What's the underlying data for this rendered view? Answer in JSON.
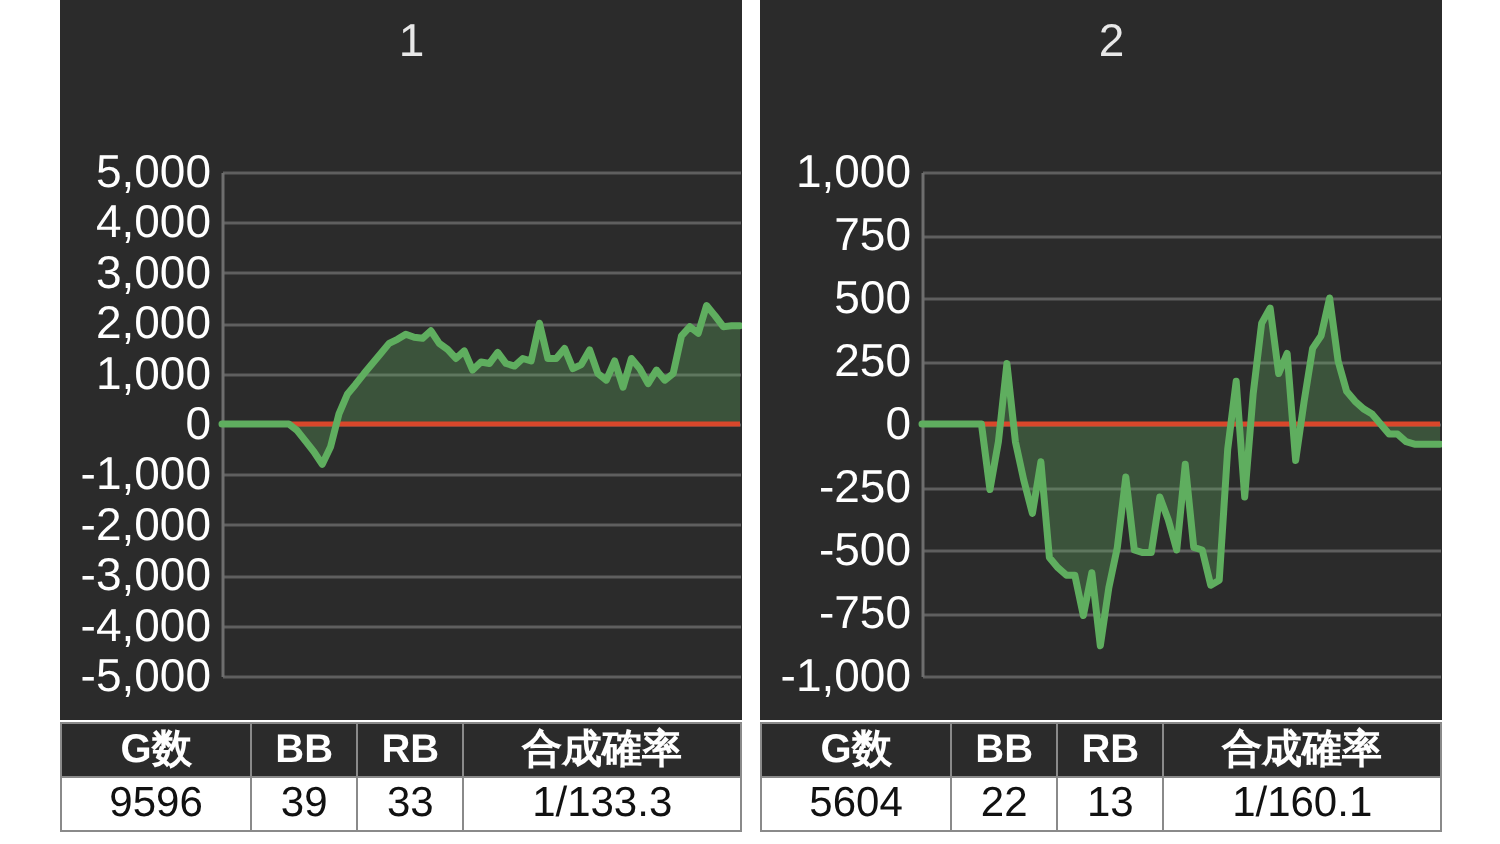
{
  "chart_data": [
    {
      "type": "area",
      "title": "1",
      "categories": [
        null,
        null,
        null,
        null,
        null,
        null,
        null,
        null,
        null,
        null,
        null,
        null,
        null,
        null,
        null,
        null,
        null,
        null,
        null,
        null,
        null,
        null,
        null,
        null,
        null,
        null,
        null,
        null,
        null,
        null,
        null,
        null,
        null,
        null,
        null,
        null,
        null,
        null,
        null,
        null,
        null,
        null,
        null,
        null,
        null,
        null,
        null,
        null,
        null,
        null,
        null,
        null,
        null,
        null,
        null,
        null,
        null,
        null,
        null,
        null,
        null,
        null,
        null
      ],
      "series": [
        {
          "color": "#5fae5f",
          "values": [
            0,
            0,
            0,
            0,
            0,
            0,
            0,
            0,
            0,
            -130,
            -340,
            -550,
            -800,
            -450,
            200,
            590,
            790,
            1000,
            1200,
            1400,
            1600,
            1680,
            1780,
            1720,
            1700,
            1850,
            1600,
            1480,
            1300,
            1450,
            1070,
            1230,
            1200,
            1420,
            1200,
            1150,
            1300,
            1250,
            2000,
            1300,
            1300,
            1500,
            1100,
            1180,
            1470,
            1000,
            870,
            1250,
            730,
            1300,
            1100,
            800,
            1070,
            870,
            1000,
            1750,
            1930,
            1800,
            2350,
            2150,
            1930,
            1950,
            1950
          ]
        }
      ],
      "ylim": [
        -5000,
        5000
      ],
      "yticks": [
        {
          "value": -5000,
          "label": "-5,000"
        },
        {
          "value": -4000,
          "label": "-4,000"
        },
        {
          "value": -3000,
          "label": "-3,000"
        },
        {
          "value": -2000,
          "label": "-2,000"
        },
        {
          "value": -1000,
          "label": "-1,000"
        },
        0,
        {
          "value": 1000,
          "label": "1,000"
        },
        {
          "value": 2000,
          "label": "2,000"
        },
        {
          "value": 3000,
          "label": "3,000"
        },
        {
          "value": 4000,
          "label": "4,000"
        },
        {
          "value": 5000,
          "label": "5,000"
        }
      ],
      "grid": "y",
      "tick_labels": "y",
      "ref_lines": [
        {
          "axis": "y",
          "value": 0,
          "color": "#d9472b"
        }
      ],
      "annotations": [
        "G数",
        "BB",
        "RB",
        "合成確率",
        "9596",
        "39",
        "33",
        "1/133.3"
      ]
    },
    {
      "type": "area",
      "title": "2",
      "categories": [
        null,
        null,
        null,
        null,
        null,
        null,
        null,
        null,
        null,
        null,
        null,
        null,
        null,
        null,
        null,
        null,
        null,
        null,
        null,
        null,
        null,
        null,
        null,
        null,
        null,
        null,
        null,
        null,
        null,
        null,
        null,
        null,
        null,
        null,
        null,
        null,
        null,
        null,
        null,
        null,
        null,
        null,
        null,
        null,
        null,
        null,
        null,
        null,
        null,
        null,
        null,
        null,
        null,
        null,
        null,
        null,
        null,
        null,
        null,
        null,
        null,
        null
      ],
      "series": [
        {
          "color": "#5fae5f",
          "values": [
            0,
            0,
            0,
            0,
            0,
            0,
            0,
            0,
            -260,
            -70,
            240,
            -70,
            -225,
            -355,
            -150,
            -530,
            -570,
            -600,
            -600,
            -760,
            -590,
            -880,
            -650,
            -490,
            -210,
            -500,
            -510,
            -510,
            -290,
            -380,
            -500,
            -160,
            -490,
            -500,
            -640,
            -620,
            -100,
            170,
            -290,
            120,
            400,
            460,
            200,
            280,
            -145,
            90,
            300,
            350,
            500,
            250,
            130,
            90,
            60,
            40,
            0,
            -40,
            -40,
            -70,
            -80,
            -80,
            -80,
            -80
          ]
        }
      ],
      "ylim": [
        -1000,
        1000
      ],
      "yticks": [
        {
          "value": -1000,
          "label": "-1,000"
        },
        -750,
        -500,
        -250,
        0,
        250,
        500,
        750,
        {
          "value": 1000,
          "label": "1,000"
        }
      ],
      "grid": "y",
      "tick_labels": "y",
      "ref_lines": [
        {
          "axis": "y",
          "value": 0,
          "color": "#d9472b"
        }
      ],
      "annotations": [
        "G数",
        "BB",
        "RB",
        "合成確率",
        "5604",
        "22",
        "13",
        "1/160.1"
      ]
    }
  ]
}
